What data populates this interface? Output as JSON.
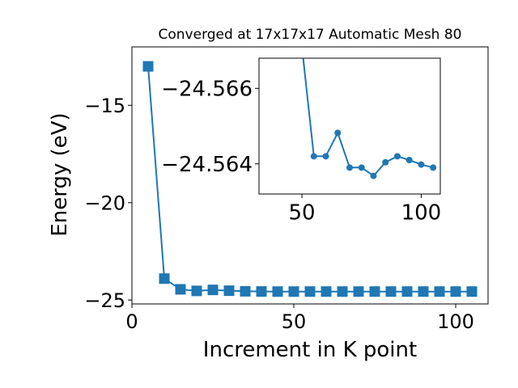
{
  "chart_data": [
    {
      "id": "main",
      "type": "line",
      "title": "Converged at 17x17x17 Automatic Mesh 80",
      "xlabel": "Increment in K point",
      "ylabel": "Energy (eV)",
      "xlim": [
        0,
        110
      ],
      "ylim": [
        -25.2,
        -12.0
      ],
      "xticks": [
        0,
        50,
        100
      ],
      "yticks": [
        -15,
        -20,
        -25
      ],
      "xtick_labels": [
        "0",
        "50",
        "100"
      ],
      "ytick_labels": [
        "−15",
        "−20",
        "−25"
      ],
      "grid": false,
      "legend": "none",
      "color": "#1f77b4",
      "marker": "square",
      "series": [
        {
          "x": [
            5,
            10,
            15,
            20,
            25,
            30,
            35,
            40,
            45,
            50,
            55,
            60,
            65,
            70,
            75,
            80,
            85,
            90,
            95,
            100,
            105
          ],
          "y": [
            -13.0,
            -23.9,
            -24.45,
            -24.53,
            -24.48,
            -24.52,
            -24.55,
            -24.56,
            -24.565,
            -24.565,
            -24.5642,
            -24.5642,
            -24.5646,
            -24.564,
            -24.564,
            -24.5638,
            -24.5641,
            -24.5642,
            -24.5641,
            -24.564,
            -24.564
          ]
        }
      ]
    },
    {
      "id": "inset",
      "type": "line",
      "title": "",
      "xlabel": "",
      "ylabel": "",
      "xlim": [
        32,
        108
      ],
      "ylim": [
        -24.5632,
        -24.5668
      ],
      "xticks": [
        50,
        100
      ],
      "yticks": [
        -24.566,
        -24.564
      ],
      "xtick_labels": [
        "50",
        "100"
      ],
      "ytick_labels": [
        "−24.566",
        "−24.564"
      ],
      "grid": false,
      "legend": "none",
      "color": "#1f77b4",
      "marker": "circle",
      "series": [
        {
          "x": [
            45,
            55,
            60,
            65,
            70,
            75,
            80,
            85,
            90,
            95,
            100,
            105
          ],
          "y": [
            -24.57,
            -24.5642,
            -24.5642,
            -24.56482,
            -24.5639,
            -24.5639,
            -24.56368,
            -24.56404,
            -24.5642,
            -24.5641,
            -24.56398,
            -24.5639
          ]
        }
      ]
    }
  ]
}
